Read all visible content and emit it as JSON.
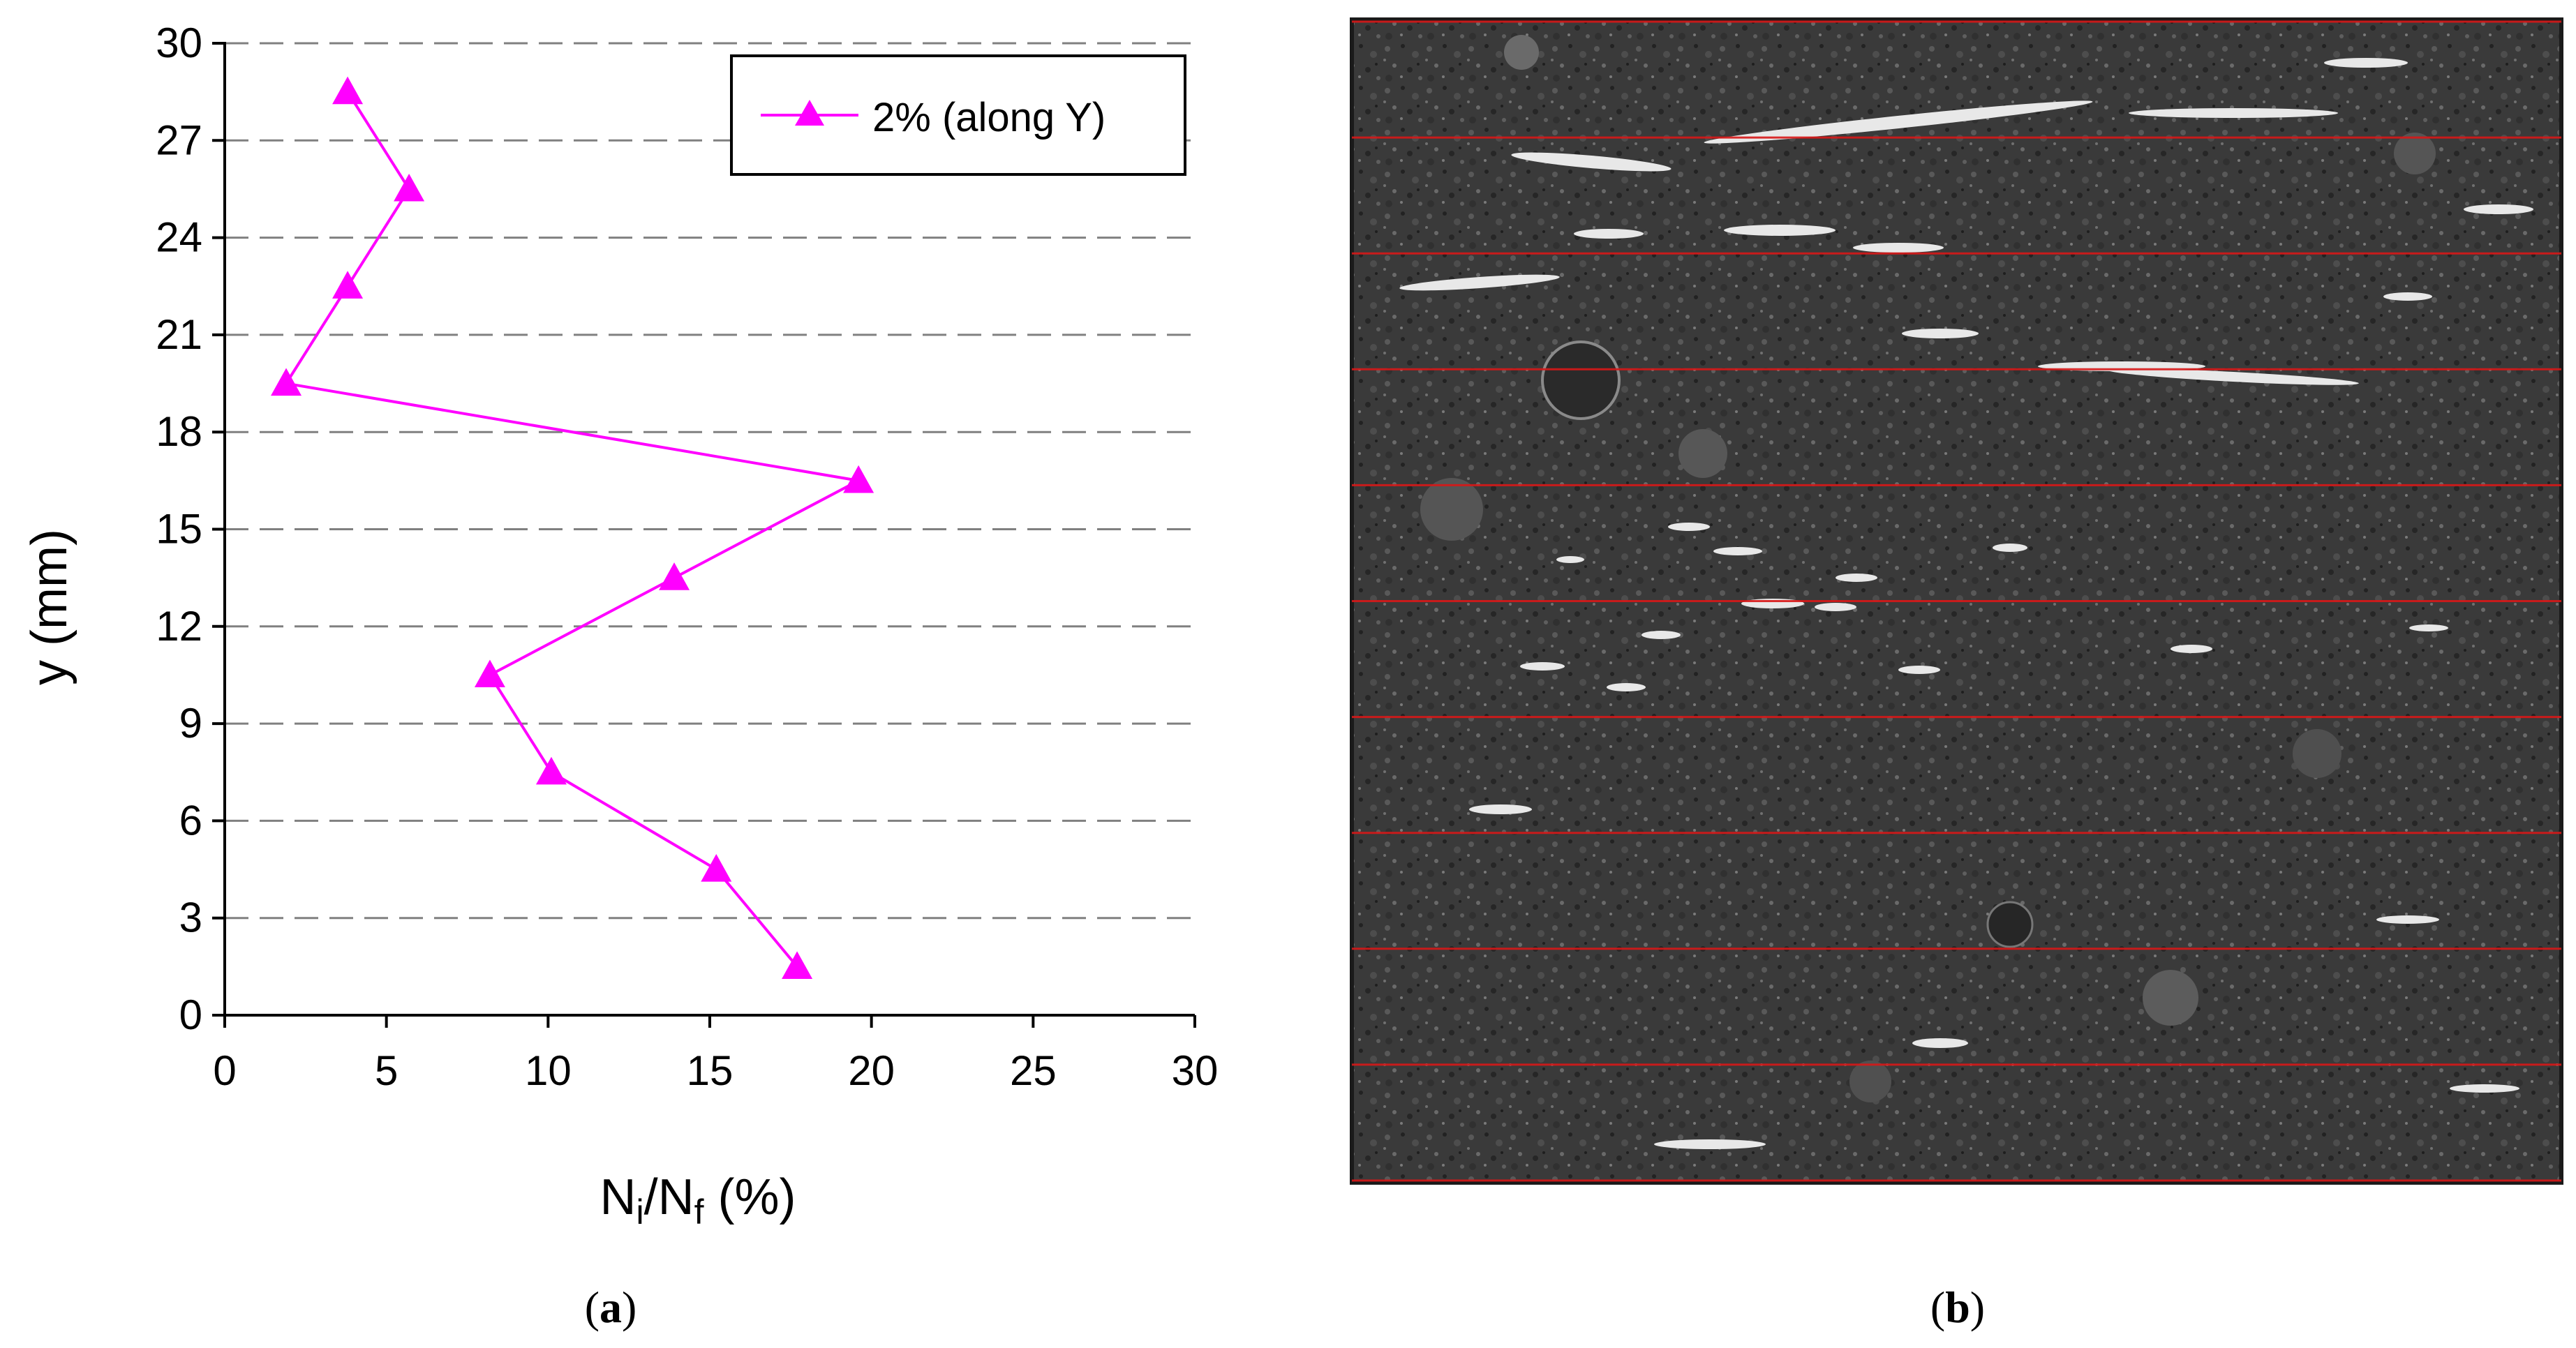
{
  "captions": {
    "a_open": "(",
    "a_letter": "a",
    "a_close": ")",
    "b_open": "(",
    "b_letter": "b",
    "b_close": ")"
  },
  "colors": {
    "series": "#ff00ff",
    "grid": "#808080",
    "slice_lines": "#d81818",
    "photo_bg": "#3a3a3a"
  },
  "chart_data": {
    "type": "line",
    "title": "",
    "xlabel": {
      "main": "N",
      "sub1": "i",
      "mid": "/N",
      "sub2": "f",
      "tail": " (%)"
    },
    "ylabel": "y (mm)",
    "xlim": [
      0,
      30
    ],
    "ylim": [
      0,
      30
    ],
    "xticks": [
      0,
      5,
      10,
      15,
      20,
      25,
      30
    ],
    "yticks": [
      0,
      3,
      6,
      9,
      12,
      15,
      18,
      21,
      24,
      27,
      30
    ],
    "grid": "horizontal dashed",
    "legend_position": "top-right",
    "series": [
      {
        "name": "2% (along Y)",
        "marker": "triangle",
        "points": [
          {
            "x": 3.8,
            "y": 28.5
          },
          {
            "x": 5.7,
            "y": 25.5
          },
          {
            "x": 3.8,
            "y": 22.5
          },
          {
            "x": 1.9,
            "y": 19.5
          },
          {
            "x": 19.6,
            "y": 16.5
          },
          {
            "x": 13.9,
            "y": 13.5
          },
          {
            "x": 8.2,
            "y": 10.5
          },
          {
            "x": 10.1,
            "y": 7.5
          },
          {
            "x": 15.2,
            "y": 4.5
          },
          {
            "x": 17.7,
            "y": 1.5
          }
        ]
      }
    ]
  },
  "photo": {
    "slice_line_count": 11
  }
}
